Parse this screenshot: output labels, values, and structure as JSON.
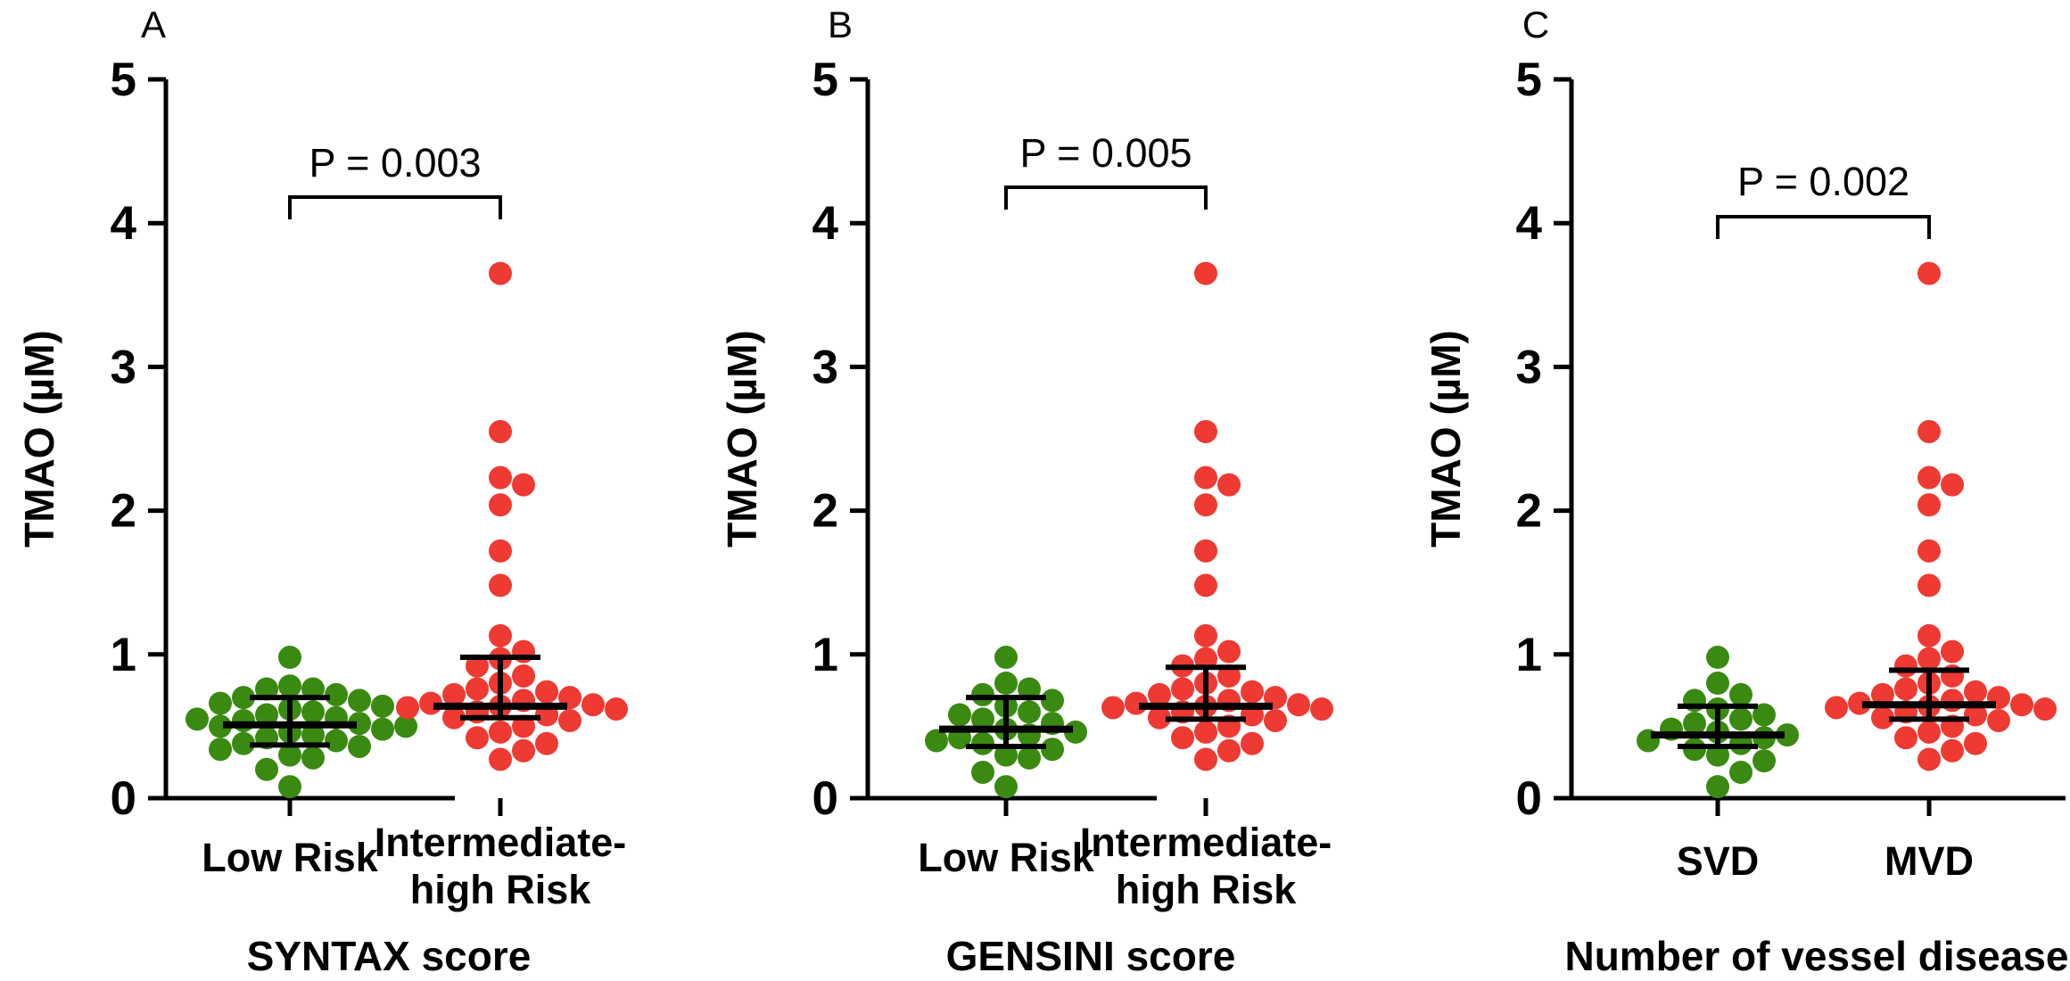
{
  "colors": {
    "group1": "#3a8a12",
    "group2": "#ee3a32",
    "axis": "#000000"
  },
  "chart_data": [
    {
      "type": "scatter",
      "panel": "A",
      "ylabel": "TMAO (µM)",
      "xlabel": "SYNTAX score",
      "ylim": [
        0,
        5
      ],
      "yticks": [
        "0",
        "1",
        "2",
        "3",
        "4",
        "5"
      ],
      "categories": [
        [
          "Low Risk"
        ],
        [
          "Intermediate-",
          "high Risk"
        ]
      ],
      "annotation": "P = 0.003",
      "series": [
        {
          "values": [
            0.98,
            0.78,
            0.76,
            0.76,
            0.72,
            0.7,
            0.68,
            0.66,
            0.64,
            0.62,
            0.6,
            0.58,
            0.56,
            0.55,
            0.54,
            0.52,
            0.5,
            0.5,
            0.48,
            0.46,
            0.44,
            0.42,
            0.4,
            0.38,
            0.36,
            0.34,
            0.3,
            0.28,
            0.2,
            0.08
          ],
          "median": 0.51,
          "q1": 0.37,
          "q3": 0.7
        },
        {
          "values": [
            3.65,
            2.55,
            2.23,
            2.18,
            2.04,
            1.72,
            1.48,
            1.13,
            1.02,
            0.97,
            0.92,
            0.85,
            0.8,
            0.76,
            0.74,
            0.72,
            0.7,
            0.68,
            0.66,
            0.65,
            0.64,
            0.63,
            0.62,
            0.6,
            0.58,
            0.56,
            0.54,
            0.5,
            0.46,
            0.42,
            0.38,
            0.33,
            0.27
          ],
          "median": 0.64,
          "q1": 0.56,
          "q3": 0.98
        }
      ]
    },
    {
      "type": "scatter",
      "panel": "B",
      "ylabel": "TMAO (µM)",
      "xlabel": "GENSINI score",
      "ylim": [
        0,
        5
      ],
      "yticks": [
        "0",
        "1",
        "2",
        "3",
        "4",
        "5"
      ],
      "categories": [
        [
          "Low Risk"
        ],
        [
          "Intermediate-",
          "high Risk"
        ]
      ],
      "annotation": "P = 0.005",
      "series": [
        {
          "values": [
            0.98,
            0.8,
            0.76,
            0.72,
            0.68,
            0.64,
            0.6,
            0.58,
            0.55,
            0.52,
            0.48,
            0.46,
            0.44,
            0.42,
            0.4,
            0.38,
            0.34,
            0.3,
            0.28,
            0.18,
            0.08
          ],
          "median": 0.48,
          "q1": 0.36,
          "q3": 0.7
        },
        {
          "values": [
            3.65,
            2.55,
            2.23,
            2.18,
            2.04,
            1.72,
            1.48,
            1.13,
            1.02,
            0.97,
            0.92,
            0.85,
            0.8,
            0.76,
            0.74,
            0.72,
            0.7,
            0.68,
            0.66,
            0.65,
            0.64,
            0.63,
            0.62,
            0.6,
            0.58,
            0.56,
            0.54,
            0.5,
            0.46,
            0.42,
            0.38,
            0.33,
            0.27
          ],
          "median": 0.64,
          "q1": 0.55,
          "q3": 0.91
        }
      ]
    },
    {
      "type": "scatter",
      "panel": "C",
      "ylabel": "TMAO (µM)",
      "xlabel": "Number of vessel disease",
      "ylim": [
        0,
        5
      ],
      "yticks": [
        "0",
        "1",
        "2",
        "3",
        "4",
        "5"
      ],
      "categories": [
        [
          "SVD"
        ],
        [
          "MVD"
        ]
      ],
      "annotation": "P = 0.002",
      "series": [
        {
          "values": [
            0.98,
            0.8,
            0.72,
            0.68,
            0.62,
            0.58,
            0.55,
            0.52,
            0.48,
            0.46,
            0.44,
            0.42,
            0.4,
            0.38,
            0.34,
            0.3,
            0.26,
            0.18,
            0.08
          ],
          "median": 0.44,
          "q1": 0.36,
          "q3": 0.64
        },
        {
          "values": [
            3.65,
            2.55,
            2.23,
            2.18,
            2.04,
            1.72,
            1.48,
            1.13,
            1.02,
            0.97,
            0.92,
            0.85,
            0.8,
            0.76,
            0.74,
            0.72,
            0.7,
            0.68,
            0.66,
            0.65,
            0.64,
            0.63,
            0.62,
            0.6,
            0.58,
            0.56,
            0.54,
            0.5,
            0.46,
            0.42,
            0.38,
            0.33,
            0.27
          ],
          "median": 0.65,
          "q1": 0.55,
          "q3": 0.89
        }
      ]
    }
  ]
}
